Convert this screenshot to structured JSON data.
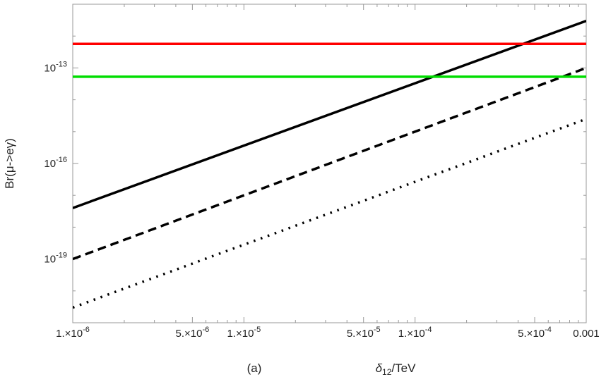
{
  "chart_data": {
    "type": "line",
    "xscale": "log",
    "yscale": "log",
    "xlim": [
      1e-06,
      0.001
    ],
    "ylim": [
      1e-21,
      1e-11
    ],
    "xlabel_main": "δ",
    "xlabel_sub": "12",
    "xlabel_unit": "/TeV",
    "ylabel": "Br(μ->eγ)",
    "caption": "(a)",
    "grid": false,
    "legend": "none",
    "x_ticks": [
      {
        "value": 1e-06,
        "label": "1.×10",
        "exp": "-6"
      },
      {
        "value": 5e-06,
        "label": "5.×10",
        "exp": "-6"
      },
      {
        "value": 1e-05,
        "label": "1.×10",
        "exp": "-5"
      },
      {
        "value": 5e-05,
        "label": "5.×10",
        "exp": "-5"
      },
      {
        "value": 0.0001,
        "label": "1.×10",
        "exp": "-4"
      },
      {
        "value": 0.0005,
        "label": "5.×10",
        "exp": "-4"
      },
      {
        "value": 0.001,
        "label": "0.001",
        "exp": ""
      }
    ],
    "y_ticks": [
      {
        "value": 1e-19,
        "base": "10",
        "exp": "-19"
      },
      {
        "value": 1e-16,
        "base": "10",
        "exp": "-16"
      },
      {
        "value": 1e-13,
        "base": "10",
        "exp": "-13"
      }
    ],
    "series": [
      {
        "style": "solid",
        "color": "#000000",
        "x": [
          1e-06,
          0.001
        ],
        "y": [
          4e-18,
          3e-12
        ]
      },
      {
        "style": "dashed",
        "color": "#000000",
        "x": [
          1e-06,
          0.001
        ],
        "y": [
          1e-19,
          1e-13
        ]
      },
      {
        "style": "dotted",
        "color": "#000000",
        "x": [
          1e-06,
          0.001
        ],
        "y": [
          3e-21,
          2.5e-15
        ]
      },
      {
        "style": "solid",
        "color": "#ff0000",
        "x": [
          1e-06,
          0.001
        ],
        "y": [
          5.7e-13,
          5.7e-13
        ]
      },
      {
        "style": "solid",
        "color": "#00dd00",
        "x": [
          1e-06,
          0.001
        ],
        "y": [
          5.3e-14,
          5.3e-14
        ]
      }
    ]
  }
}
